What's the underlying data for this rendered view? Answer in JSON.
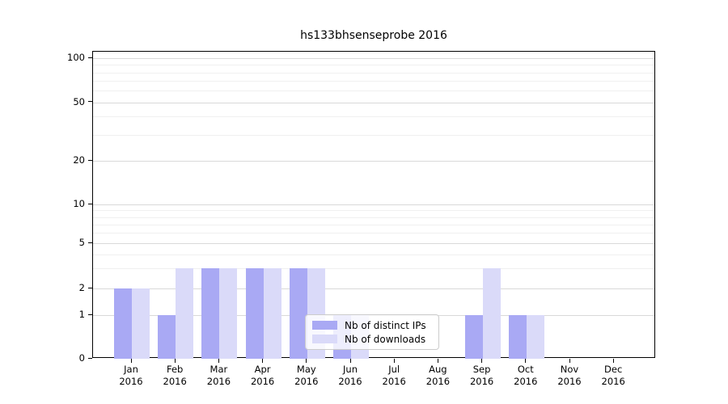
{
  "chart_data": {
    "type": "bar",
    "title": "hs133bhsenseprobe 2016",
    "categories": [
      "Jan",
      "Feb",
      "Mar",
      "Apr",
      "May",
      "Jun",
      "Jul",
      "Aug",
      "Sep",
      "Oct",
      "Nov",
      "Dec"
    ],
    "category_year": "2016",
    "series": [
      {
        "name": "Nb of distinct IPs",
        "color": "#a9a9f4",
        "values": [
          2,
          1,
          3,
          3,
          3,
          1,
          0,
          0,
          1,
          1,
          0,
          0
        ]
      },
      {
        "name": "Nb of downloads",
        "color": "#dadaf9",
        "values": [
          2,
          3,
          3,
          3,
          3,
          1,
          0,
          0,
          3,
          1,
          0,
          0
        ]
      }
    ],
    "xlabel": "",
    "ylabel": "",
    "yticks": [
      0,
      1,
      2,
      5,
      10,
      20,
      50,
      100
    ],
    "ylim": [
      0,
      111
    ],
    "yscale": "log-like",
    "grid": true,
    "legend_position": "lower-center"
  }
}
